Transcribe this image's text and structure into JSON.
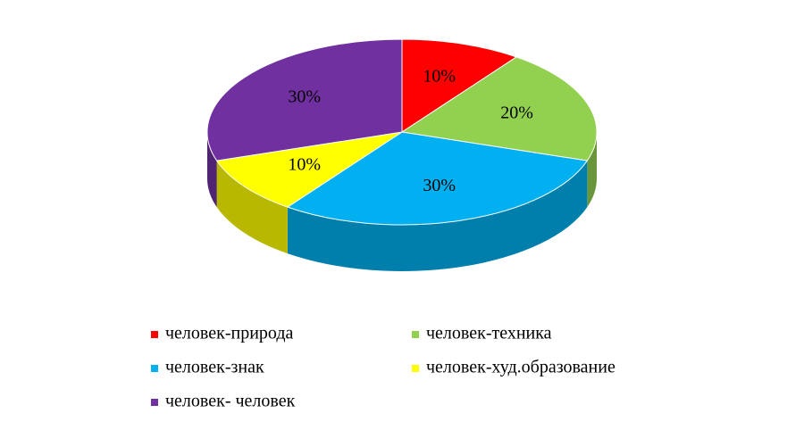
{
  "chart_data": {
    "type": "pie",
    "categories": [
      "человек-природа",
      "человек-техника",
      "человек-знак",
      "человек-худ.образование",
      "человек- человек"
    ],
    "values": [
      10,
      20,
      30,
      10,
      30
    ],
    "value_labels": [
      "10%",
      "20%",
      "30%",
      "10%",
      "30%"
    ],
    "colors": [
      "#ff0000",
      "#92d050",
      "#00b0f0",
      "#ffff00",
      "#7030a0"
    ]
  }
}
